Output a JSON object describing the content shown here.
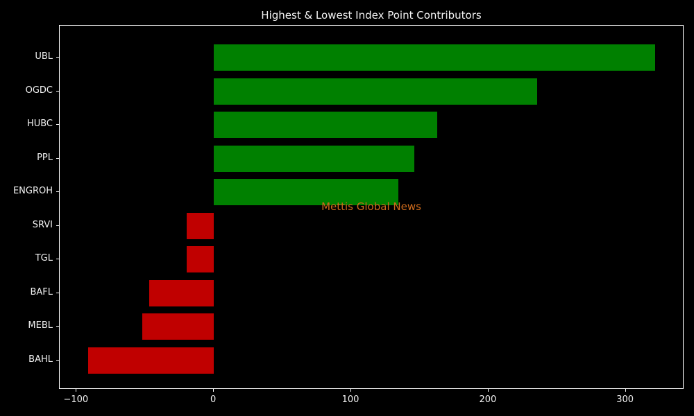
{
  "window": {
    "title": "Highest & Lowest Index Point Contributors"
  },
  "watermark": {
    "text": "Mettis Global News",
    "color": "#cc6a1c"
  },
  "colors": {
    "background": "#000000",
    "text": "#f2f2f2",
    "spine": "#ffffff",
    "positive": "#008000",
    "negative": "#c00000"
  },
  "chart_data": {
    "type": "bar",
    "orientation": "horizontal",
    "title": "Highest & Lowest Index Point Contributors",
    "categories": [
      "UBL",
      "OGDC",
      "HUBC",
      "PPL",
      "ENGROH",
      "SRVI",
      "TGL",
      "BAFL",
      "MEBL",
      "BAHL"
    ],
    "values": [
      321.4,
      235.3,
      162.6,
      146.0,
      134.3,
      -19.7,
      -19.8,
      -47.0,
      -52.0,
      -91.4
    ],
    "positive_color": "#008000",
    "negative_color": "#c00000",
    "xlabel": "",
    "ylabel": "",
    "xlim": [
      -112.3,
      342.6
    ],
    "x_ticks": [
      -100,
      0,
      100,
      200,
      300
    ],
    "x_tick_labels": [
      "−100",
      "0",
      "100",
      "200",
      "300"
    ],
    "grid": false,
    "legend": null,
    "annotations": [
      "Mettis Global News"
    ]
  }
}
